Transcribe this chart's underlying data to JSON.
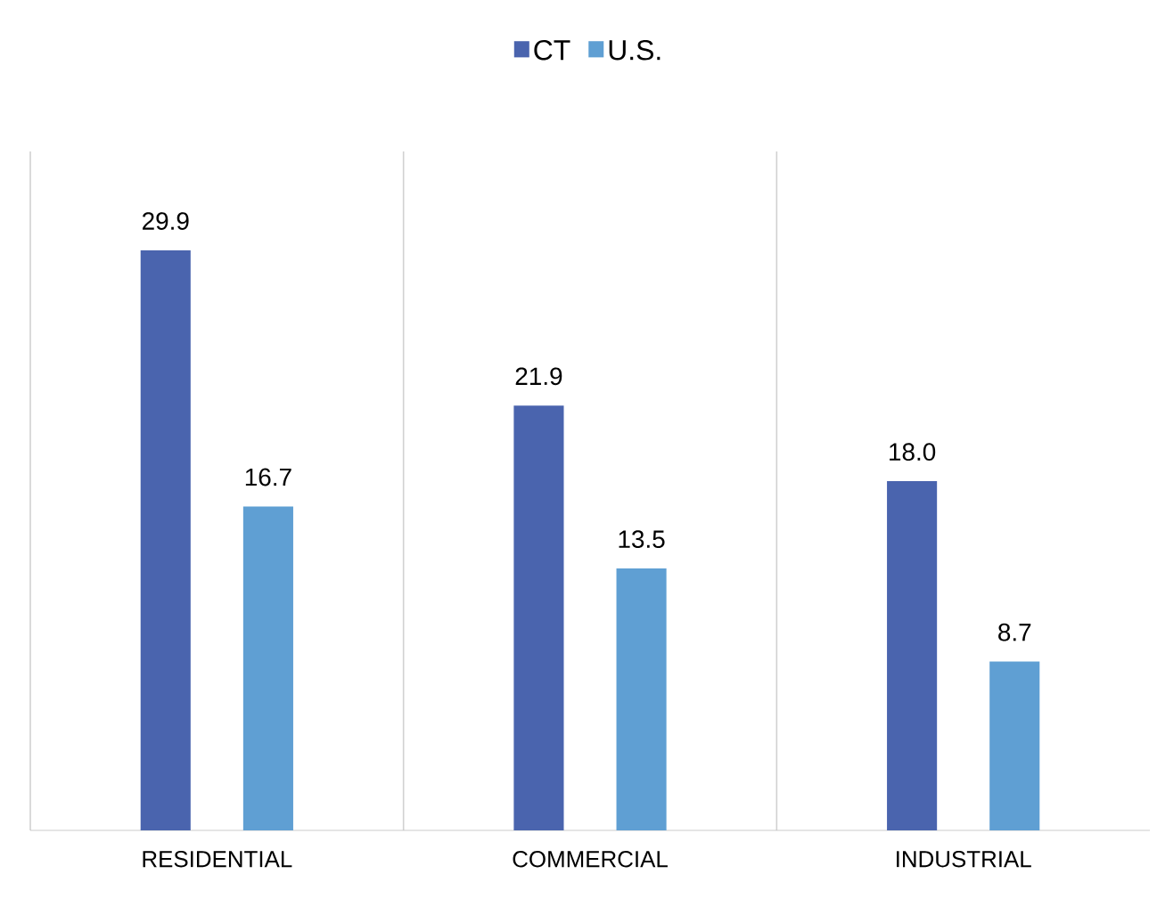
{
  "chart_data": {
    "type": "bar",
    "categories": [
      "RESIDENTIAL",
      "COMMERCIAL",
      "INDUSTRIAL"
    ],
    "series": [
      {
        "name": "CT",
        "color": "#4a64ae",
        "values": [
          29.9,
          21.9,
          18.0
        ],
        "value_labels": [
          "29.9",
          "21.9",
          "18.0"
        ]
      },
      {
        "name": "U.S.",
        "color": "#5f9fd3",
        "values": [
          16.7,
          13.5,
          8.7
        ],
        "value_labels": [
          "16.7",
          "13.5",
          "8.7"
        ]
      }
    ],
    "ylim": [
      0,
      35
    ],
    "legend": "top",
    "tick_labels": "x",
    "grid": "x"
  }
}
